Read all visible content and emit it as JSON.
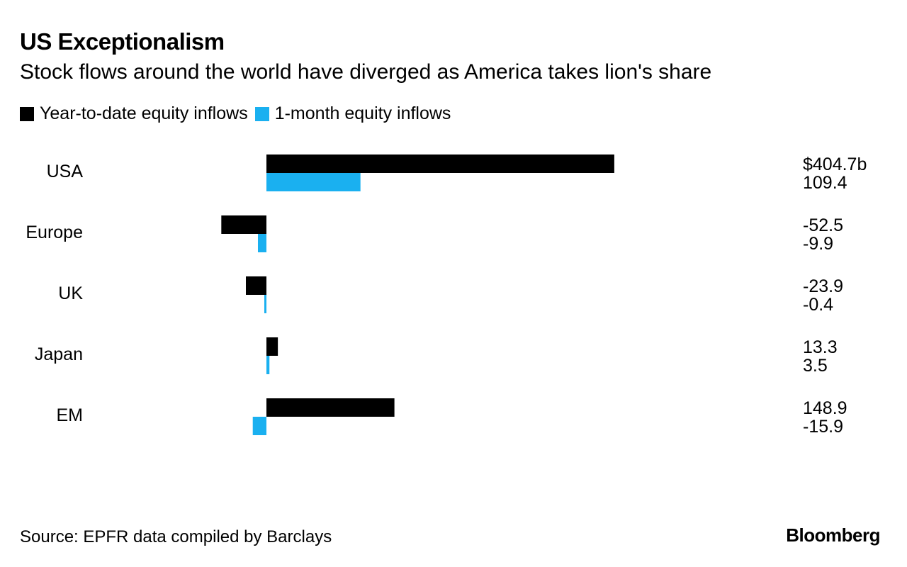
{
  "chart_data": {
    "type": "bar",
    "orientation": "horizontal",
    "title": "US Exceptionalism",
    "subtitle": "Stock flows around the world have diverged as America takes lion's share",
    "categories": [
      "USA",
      "Europe",
      "UK",
      "Japan",
      "EM"
    ],
    "series": [
      {
        "name": "Year-to-date equity inflows",
        "color": "#000000",
        "values": [
          404.7,
          -52.5,
          -23.9,
          13.3,
          148.9
        ],
        "labels": [
          "$404.7b",
          "-52.5",
          "-23.9",
          "13.3",
          "148.9"
        ]
      },
      {
        "name": "1-month equity inflows",
        "color": "#1ab0f0",
        "values": [
          109.4,
          -9.9,
          -0.4,
          3.5,
          -15.9
        ],
        "labels": [
          "109.4",
          "-9.9",
          "-0.4",
          "3.5",
          "-15.9"
        ]
      }
    ],
    "xlabel": "",
    "ylabel": "",
    "grid": false,
    "legend": "top-left"
  },
  "footer": {
    "source": "Source: EPFR data compiled by Barclays",
    "brand": "Bloomberg"
  }
}
